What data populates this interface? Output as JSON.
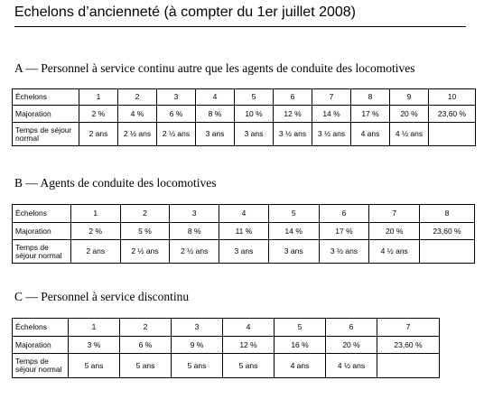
{
  "title": "Echelons d’ancienneté (à compter du 1er juillet 2008)",
  "sections": [
    {
      "heading": "A — Personnel à service continu autre que les agents de conduite des locomotives",
      "rows": [
        {
          "label": "Échelons",
          "cells": [
            "1",
            "2",
            "3",
            "4",
            "5",
            "6",
            "7",
            "8",
            "9",
            "10"
          ]
        },
        {
          "label": "Majoration",
          "cells": [
            "2 %",
            "4 %",
            "6 %",
            "8 %",
            "10 %",
            "12 %",
            "14 %",
            "17 %",
            "20 %",
            "23,60 %"
          ]
        },
        {
          "label": "Temps de séjour normal",
          "cells": [
            "2 ans",
            "2 ½ ans",
            "2 ½ ans",
            "3 ans",
            "3 ans",
            "3 ½ ans",
            "3 ½ ans",
            "4 ans",
            "4 ½ ans",
            ""
          ]
        }
      ]
    },
    {
      "heading": "B — Agents de conduite des locomotives",
      "rows": [
        {
          "label": "Échelons",
          "cells": [
            "1",
            "2",
            "3",
            "4",
            "5",
            "6",
            "7",
            "8"
          ]
        },
        {
          "label": "Majoration",
          "cells": [
            "2 %",
            "5 %",
            "8 %",
            "11 %",
            "14 %",
            "17 %",
            "20 %",
            "23,60 %"
          ]
        },
        {
          "label": "Temps de séjour normal",
          "cells": [
            "2 ans",
            "2 ½ ans",
            "2 ½ ans",
            "3 ans",
            "3 ans",
            "3 ½ ans",
            "4 ½ ans",
            ""
          ]
        }
      ]
    },
    {
      "heading": "C — Personnel à service discontinu",
      "rows": [
        {
          "label": "Échelons",
          "cells": [
            "1",
            "2",
            "3",
            "4",
            "5",
            "6",
            "7"
          ]
        },
        {
          "label": "Majoration",
          "cells": [
            "3 %",
            "6 %",
            "9 %",
            "12 %",
            "16 %",
            "20 %",
            "23,60 %"
          ]
        },
        {
          "label": "Temps de séjour normal",
          "cells": [
            "5 ans",
            "5 ans",
            "5 ans",
            "5 ans",
            "4 ans",
            "4 ½ ans",
            ""
          ]
        }
      ]
    }
  ]
}
